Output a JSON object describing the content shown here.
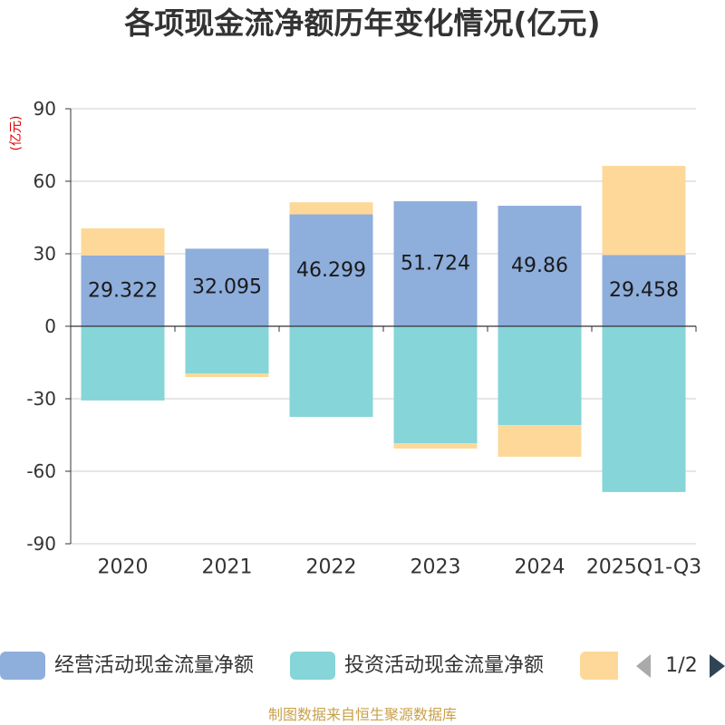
{
  "footer": "制图数据来自恒生聚源数据库",
  "legend": {
    "page": "1/2"
  },
  "chart_data": {
    "type": "bar",
    "stacked": true,
    "title": "各项现金流净额历年变化情况(亿元)",
    "ylabel": "(亿元)",
    "ylabel_color": "#e00000",
    "categories": [
      "2020",
      "2021",
      "2022",
      "2023",
      "2024",
      "2025Q1-Q3"
    ],
    "ylim": [
      -90,
      90
    ],
    "yticks": [
      90,
      60,
      30,
      0,
      -30,
      -60,
      -90
    ],
    "grid": true,
    "legend_position": "bottom",
    "series": [
      {
        "name": "经营活动现金流量净额",
        "color": "#8eaedc",
        "values": [
          29.322,
          32.095,
          46.299,
          51.724,
          49.86,
          29.458
        ],
        "show_labels": true
      },
      {
        "name": "投资活动现金流量净额",
        "color": "#86d5d8",
        "values": [
          -30.7,
          -19.5,
          -37.5,
          -48.4,
          -40.9,
          -68.6
        ],
        "show_labels": false
      },
      {
        "color": "#fdd899",
        "values": [
          11.2,
          -1.5,
          5.0,
          -2.2,
          -13.1,
          36.9
        ],
        "show_labels": false
      }
    ]
  }
}
